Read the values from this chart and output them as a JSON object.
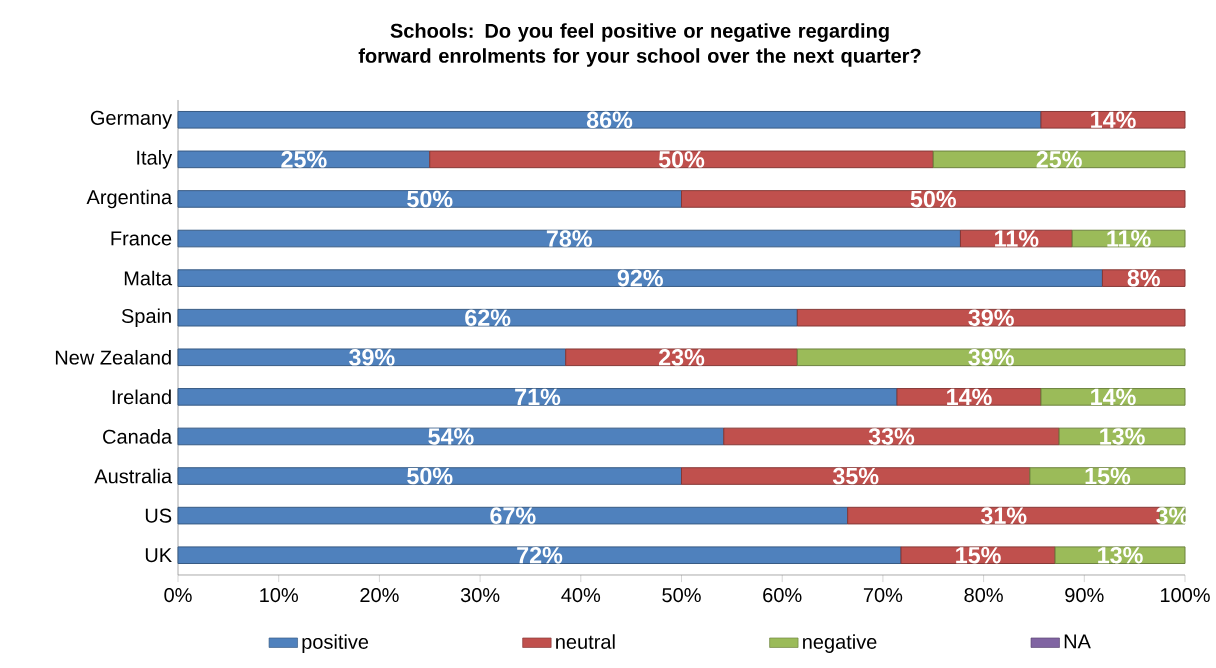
{
  "chart_data": {
    "type": "bar",
    "orientation": "horizontal",
    "stacked": true,
    "title": "Schools: Do you feel positive or negative regarding forward enrolments for your school over the next quarter?",
    "categories": [
      "Germany",
      "Italy",
      "Argentina",
      "France",
      "Malta",
      "Spain",
      "New Zealand",
      "Ireland",
      "Canada",
      "Australia",
      "US",
      "UK"
    ],
    "xlim": [
      0,
      100
    ],
    "xticks": [
      {
        "value": 0,
        "label": "0%"
      },
      {
        "value": 10,
        "label": "10%"
      },
      {
        "value": 20,
        "label": "20%"
      },
      {
        "value": 30,
        "label": "30%"
      },
      {
        "value": 40,
        "label": "40%"
      },
      {
        "value": 50,
        "label": "50%"
      },
      {
        "value": 60,
        "label": "60%"
      },
      {
        "value": 70,
        "label": "70%"
      },
      {
        "value": 80,
        "label": "80%"
      },
      {
        "value": 90,
        "label": "90%"
      },
      {
        "value": 100,
        "label": "100%"
      }
    ],
    "legend": "bottom",
    "series": [
      {
        "name": "positive",
        "color": "#4f81bd",
        "values": [
          85.7,
          25,
          50,
          77.7,
          91.8,
          61.5,
          38.5,
          71.4,
          54.2,
          50,
          66.5,
          71.8
        ],
        "value_labels": [
          "86%",
          "25%",
          "50%",
          "78%",
          "92%",
          "62%",
          "39%",
          "71%",
          "54%",
          "50%",
          "67%",
          "72%"
        ]
      },
      {
        "name": "neutral",
        "color": "#c0504d",
        "values": [
          14.3,
          50,
          50,
          11.1,
          8.2,
          38.5,
          23,
          14.3,
          33.3,
          34.6,
          31,
          15.3
        ],
        "value_labels": [
          "14%",
          "50%",
          "50%",
          "11%",
          "8%",
          "39%",
          "23%",
          "14%",
          "33%",
          "35%",
          "31%",
          "15%"
        ]
      },
      {
        "name": "negative",
        "color": "#9bbb59",
        "values": [
          null,
          25,
          null,
          11.2,
          null,
          null,
          38.5,
          14.3,
          12.5,
          15.4,
          2.5,
          12.9
        ],
        "value_labels": [
          null,
          "25%",
          null,
          "11%",
          null,
          null,
          "39%",
          "14%",
          "13%",
          "15%",
          "3%",
          "13%"
        ]
      },
      {
        "name": "NA",
        "color": "#8064a2",
        "values": [
          null,
          null,
          null,
          null,
          null,
          null,
          null,
          null,
          null,
          null,
          null,
          null
        ]
      }
    ]
  }
}
